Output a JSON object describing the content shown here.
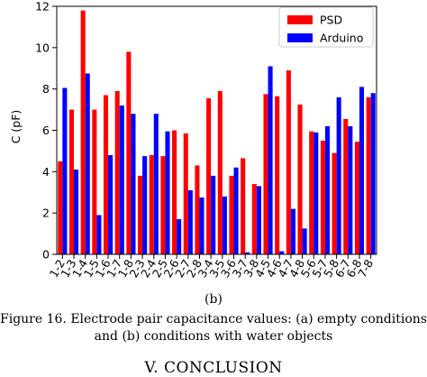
{
  "chart_data": {
    "type": "bar",
    "ylabel": "C (pF)",
    "xlabel": "",
    "ylim": [
      0,
      12
    ],
    "yticks": [
      0,
      2,
      4,
      6,
      8,
      10,
      12
    ],
    "categories": [
      "1-2",
      "1-3",
      "1-4",
      "1-5",
      "1-6",
      "1-7",
      "1-8",
      "2-3",
      "2-4",
      "2-5",
      "2-6",
      "2-7",
      "2-8",
      "3-4",
      "3-5",
      "3-6",
      "3-7",
      "3-8",
      "4-5",
      "4-6",
      "4-7",
      "4-8",
      "5-6",
      "5-7",
      "5-8",
      "6-7",
      "6-8",
      "7-8"
    ],
    "series": [
      {
        "name": "PSD",
        "color": "#ff0000",
        "values": [
          4.5,
          7.0,
          11.8,
          7.0,
          7.7,
          7.9,
          9.8,
          3.8,
          4.8,
          4.75,
          6.0,
          5.85,
          4.3,
          7.55,
          7.9,
          3.8,
          4.65,
          3.4,
          7.75,
          7.65,
          8.9,
          7.25,
          5.95,
          5.5,
          4.9,
          6.55,
          5.45,
          7.6
        ]
      },
      {
        "name": "Arduino",
        "color": "#0000ff",
        "values": [
          8.05,
          4.1,
          8.75,
          1.9,
          4.8,
          7.2,
          6.8,
          4.75,
          6.8,
          5.95,
          1.7,
          3.1,
          2.75,
          3.8,
          2.8,
          4.2,
          0.1,
          3.3,
          9.1,
          0.15,
          2.2,
          1.25,
          5.9,
          6.2,
          7.6,
          6.2,
          8.1,
          7.8
        ]
      }
    ],
    "legend": {
      "placement": "top-right"
    },
    "grid": false
  },
  "figure": {
    "sub_label": "(b)",
    "caption": "Figure 16. Electrode pair capacitance values: (a) empty conditions and (b) conditions with water objects"
  },
  "next_section": {
    "heading": "V. CONCLUSION"
  }
}
